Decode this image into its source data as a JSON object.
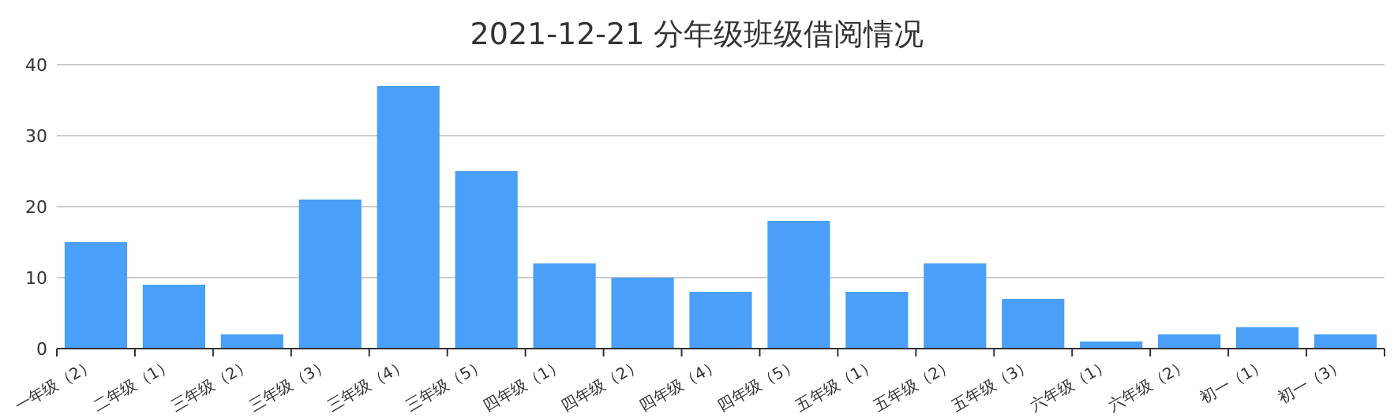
{
  "chart_data": {
    "type": "bar",
    "title": "2021-12-21 分年级班级借阅情况",
    "categories": [
      "一年级（2）",
      "二年级（1）",
      "三年级（2）",
      "三年级（3）",
      "三年级（4）",
      "三年级（5）",
      "四年级（1）",
      "四年级（2）",
      "四年级（4）",
      "四年级（5）",
      "五年级（1）",
      "五年级（2）",
      "五年级（3）",
      "六年级（1）",
      "六年级（2）",
      "初一（1）",
      "初一（3）"
    ],
    "values": [
      15,
      9,
      2,
      21,
      37,
      25,
      12,
      10,
      8,
      18,
      8,
      12,
      7,
      1,
      2,
      3,
      2
    ],
    "color": "#4a9ff8",
    "ylim": [
      0,
      40
    ],
    "yticks": [
      0,
      10,
      20,
      30,
      40
    ],
    "grid": "y"
  }
}
